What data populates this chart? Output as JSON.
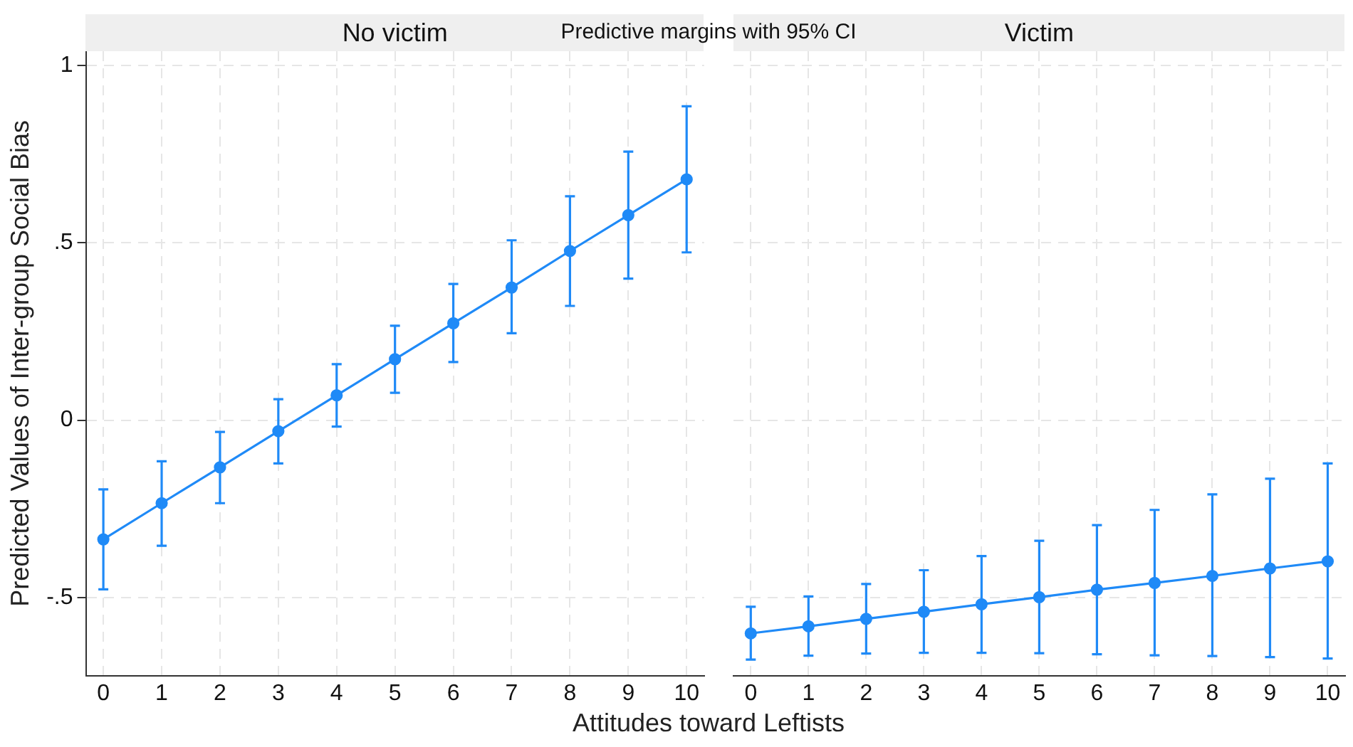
{
  "chart_data": [
    {
      "type": "line",
      "title": "No victim",
      "xlabel": "Attitudes toward Leftists",
      "ylabel": "Predicted Values of Inter-group Social Bias",
      "annotations": [
        "Predictive margins with 95% CI"
      ],
      "x": [
        0,
        1,
        2,
        3,
        4,
        5,
        6,
        7,
        8,
        9,
        10
      ],
      "series": [
        {
          "color": "#1f8af7",
          "values": [
            -0.336,
            -0.234,
            -0.133,
            -0.031,
            0.07,
            0.172,
            0.273,
            0.374,
            0.477,
            0.578,
            0.679
          ],
          "errors": [
            [
              -0.477,
              -0.195
            ],
            [
              -0.354,
              -0.116
            ],
            [
              -0.234,
              -0.033
            ],
            [
              -0.122,
              0.059
            ],
            [
              -0.018,
              0.158
            ],
            [
              0.077,
              0.266
            ],
            [
              0.164,
              0.384
            ],
            [
              0.245,
              0.507
            ],
            [
              0.322,
              0.631
            ],
            [
              0.399,
              0.757
            ],
            [
              0.473,
              0.885
            ]
          ]
        }
      ],
      "xlim": [
        -0.3,
        10.3
      ],
      "xticks": [
        0,
        1,
        2,
        3,
        4,
        5,
        6,
        7,
        8,
        9,
        10
      ],
      "ylim": [
        -0.72,
        1.04
      ],
      "yticks": [
        {
          "value": -0.5,
          "label": "-.5"
        },
        0,
        {
          "value": 0.5,
          "label": ".5"
        },
        1
      ],
      "grid": true,
      "marker": "circle",
      "line_style": "solid",
      "legend": false
    },
    {
      "type": "line",
      "title": "Victim",
      "x": [
        0,
        1,
        2,
        3,
        4,
        5,
        6,
        7,
        8,
        9,
        10
      ],
      "series": [
        {
          "color": "#1f8af7",
          "values": [
            -0.601,
            -0.581,
            -0.56,
            -0.54,
            -0.519,
            -0.499,
            -0.478,
            -0.459,
            -0.439,
            -0.418,
            -0.398
          ],
          "errors": [
            [
              -0.675,
              -0.526
            ],
            [
              -0.664,
              -0.497
            ],
            [
              -0.658,
              -0.462
            ],
            [
              -0.656,
              -0.423
            ],
            [
              -0.656,
              -0.383
            ],
            [
              -0.657,
              -0.34
            ],
            [
              -0.66,
              -0.296
            ],
            [
              -0.663,
              -0.253
            ],
            [
              -0.665,
              -0.209
            ],
            [
              -0.668,
              -0.165
            ],
            [
              -0.672,
              -0.122
            ]
          ]
        }
      ],
      "xlim": [
        -0.3,
        10.3
      ],
      "xticks": [
        0,
        1,
        2,
        3,
        4,
        5,
        6,
        7,
        8,
        9,
        10
      ],
      "ylim": [
        -0.72,
        1.04
      ],
      "yticks": [
        {
          "value": -0.5,
          "label": null
        },
        {
          "value": 0,
          "label": null
        },
        {
          "value": 0.5,
          "label": null
        },
        {
          "value": 1,
          "label": null
        }
      ],
      "grid": true,
      "marker": "circle",
      "line_style": "solid",
      "legend": false,
      "tick_labels": "x"
    }
  ]
}
